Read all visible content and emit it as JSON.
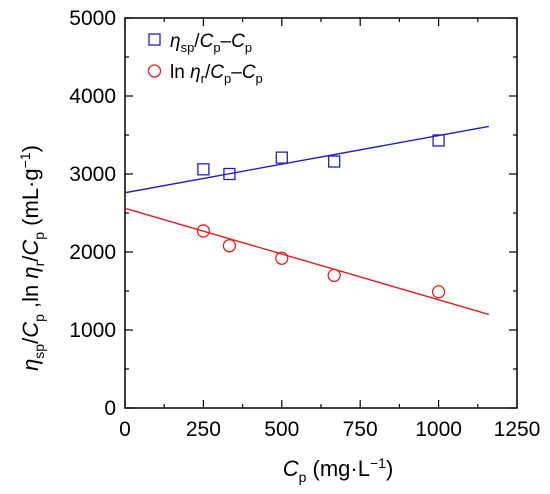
{
  "chart_data": {
    "type": "scatter",
    "xlabel": "Cp (mg·L−1)",
    "ylabel": "ηsp/Cp ,ln ηr/Cp (mL·g−1)",
    "xlim": [
      0,
      1250
    ],
    "ylim": [
      0,
      5000
    ],
    "xticks": [
      0,
      250,
      500,
      750,
      1000,
      1250
    ],
    "yticks": [
      0,
      1000,
      2000,
      3000,
      4000,
      5000
    ],
    "grid": false,
    "legend_position": "top-left",
    "series": [
      {
        "name": "ηsp/Cp–Cp",
        "marker": "square",
        "color": "#1f1fc8",
        "x": [
          250,
          333,
          500,
          667,
          1000
        ],
        "y": [
          3060,
          3000,
          3210,
          3160,
          3430
        ],
        "fit": {
          "x": [
            0,
            1160
          ],
          "y": [
            2760,
            3610
          ]
        }
      },
      {
        "name": "ln ηr/Cp–Cp",
        "marker": "circle",
        "color": "#e02020",
        "x": [
          250,
          333,
          500,
          667,
          1000
        ],
        "y": [
          2270,
          2080,
          1920,
          1700,
          1490
        ],
        "fit": {
          "x": [
            0,
            1160
          ],
          "y": [
            2560,
            1200
          ]
        }
      }
    ]
  }
}
